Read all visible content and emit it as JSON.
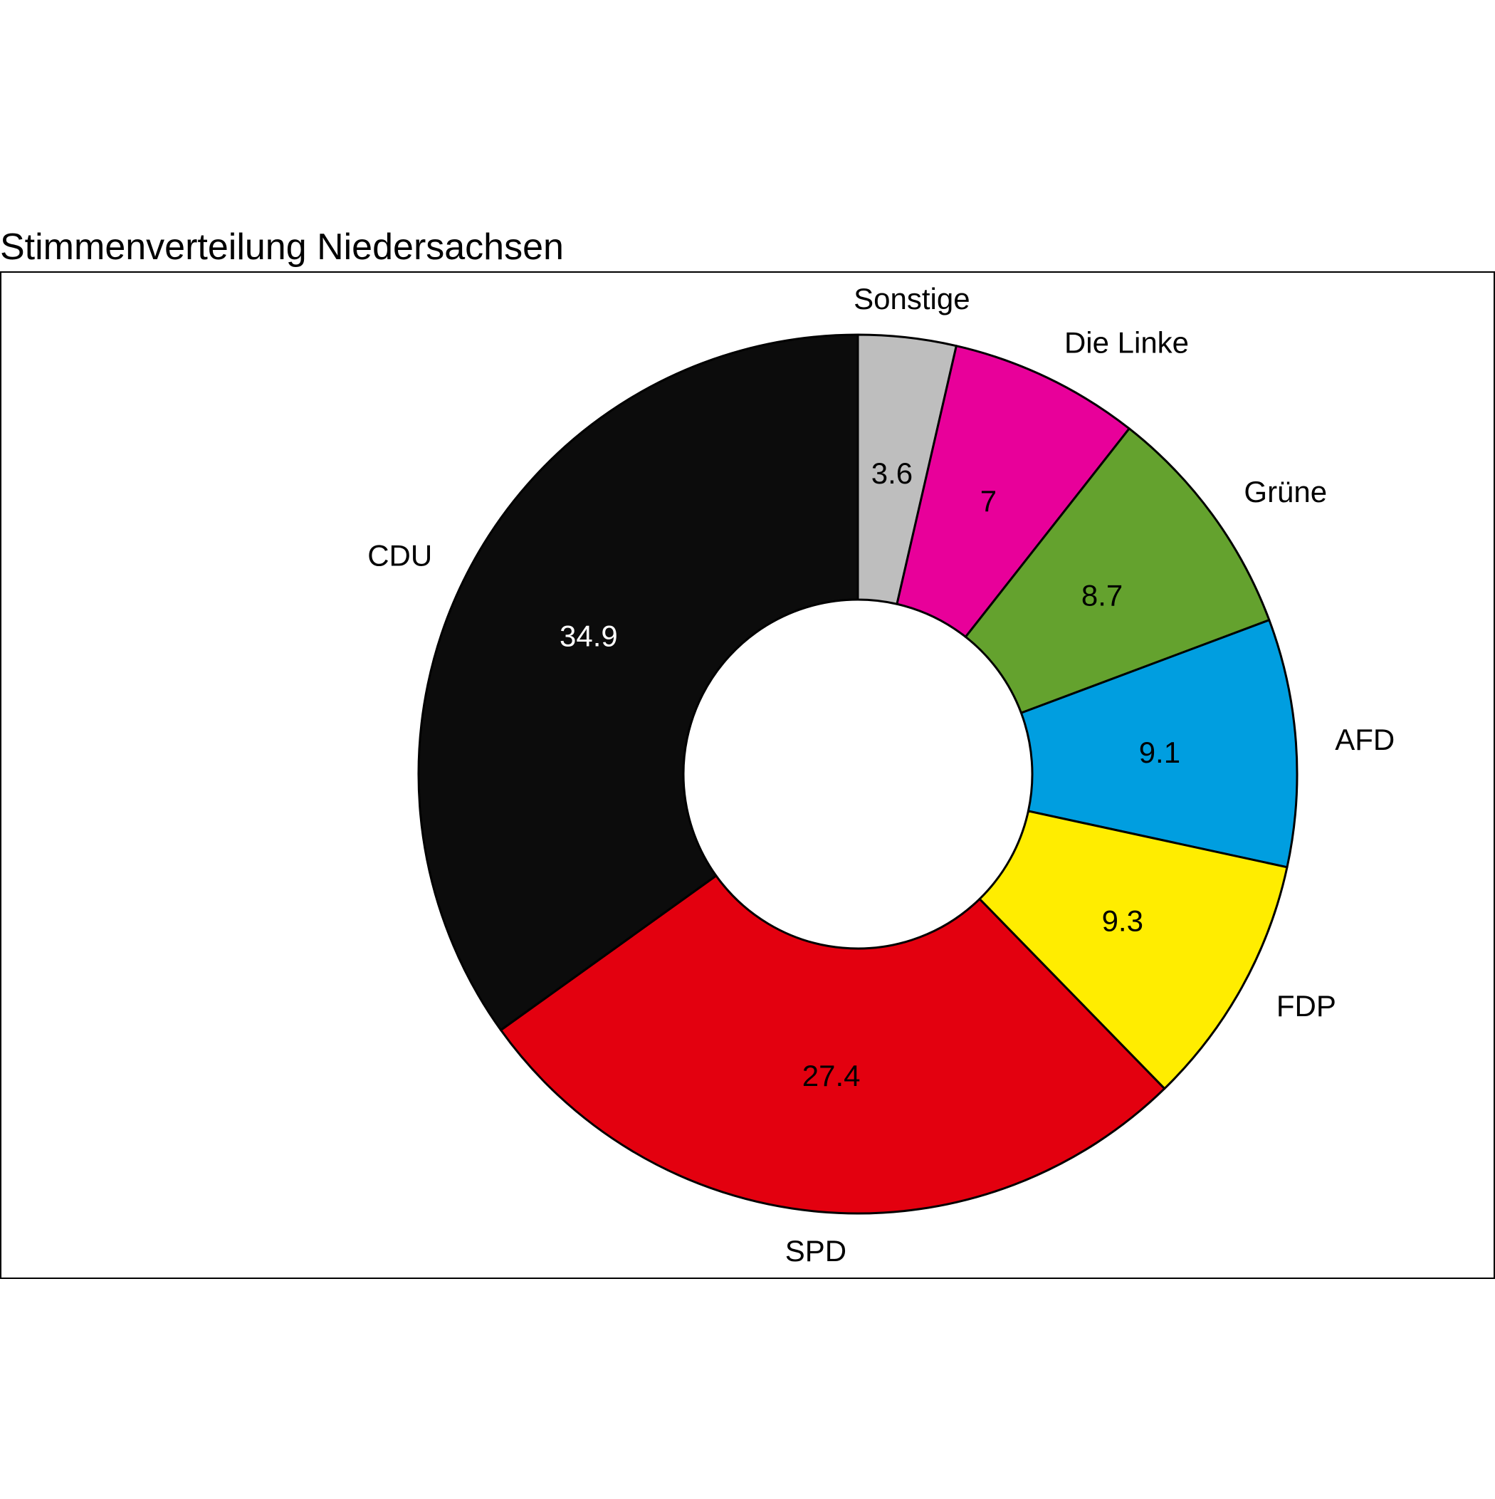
{
  "chart_data": {
    "type": "pie",
    "donut": true,
    "title": "Stimmenverteilung Niedersachsen",
    "start": "top",
    "direction": "clockwise",
    "slices": [
      {
        "label": "Sonstige",
        "value": 3.6,
        "value_label": "3.6",
        "color": "#bebebe",
        "value_text_color": "#000000"
      },
      {
        "label": "Die Linke",
        "value": 7,
        "value_label": "7",
        "color": "#e8009a",
        "value_text_color": "#000000"
      },
      {
        "label": "Grüne",
        "value": 8.7,
        "value_label": "8.7",
        "color": "#64a22e",
        "value_text_color": "#000000"
      },
      {
        "label": "AFD",
        "value": 9.1,
        "value_label": "9.1",
        "color": "#009ee0",
        "value_text_color": "#000000"
      },
      {
        "label": "FDP",
        "value": 9.3,
        "value_label": "9.3",
        "color": "#ffed00",
        "value_text_color": "#000000"
      },
      {
        "label": "SPD",
        "value": 27.4,
        "value_label": "27.4",
        "color": "#e3000f",
        "value_text_color": "#000000"
      },
      {
        "label": "CDU",
        "value": 34.9,
        "value_label": "34.9",
        "color": "#0c0c0c",
        "value_text_color": "#ffffff"
      }
    ]
  }
}
